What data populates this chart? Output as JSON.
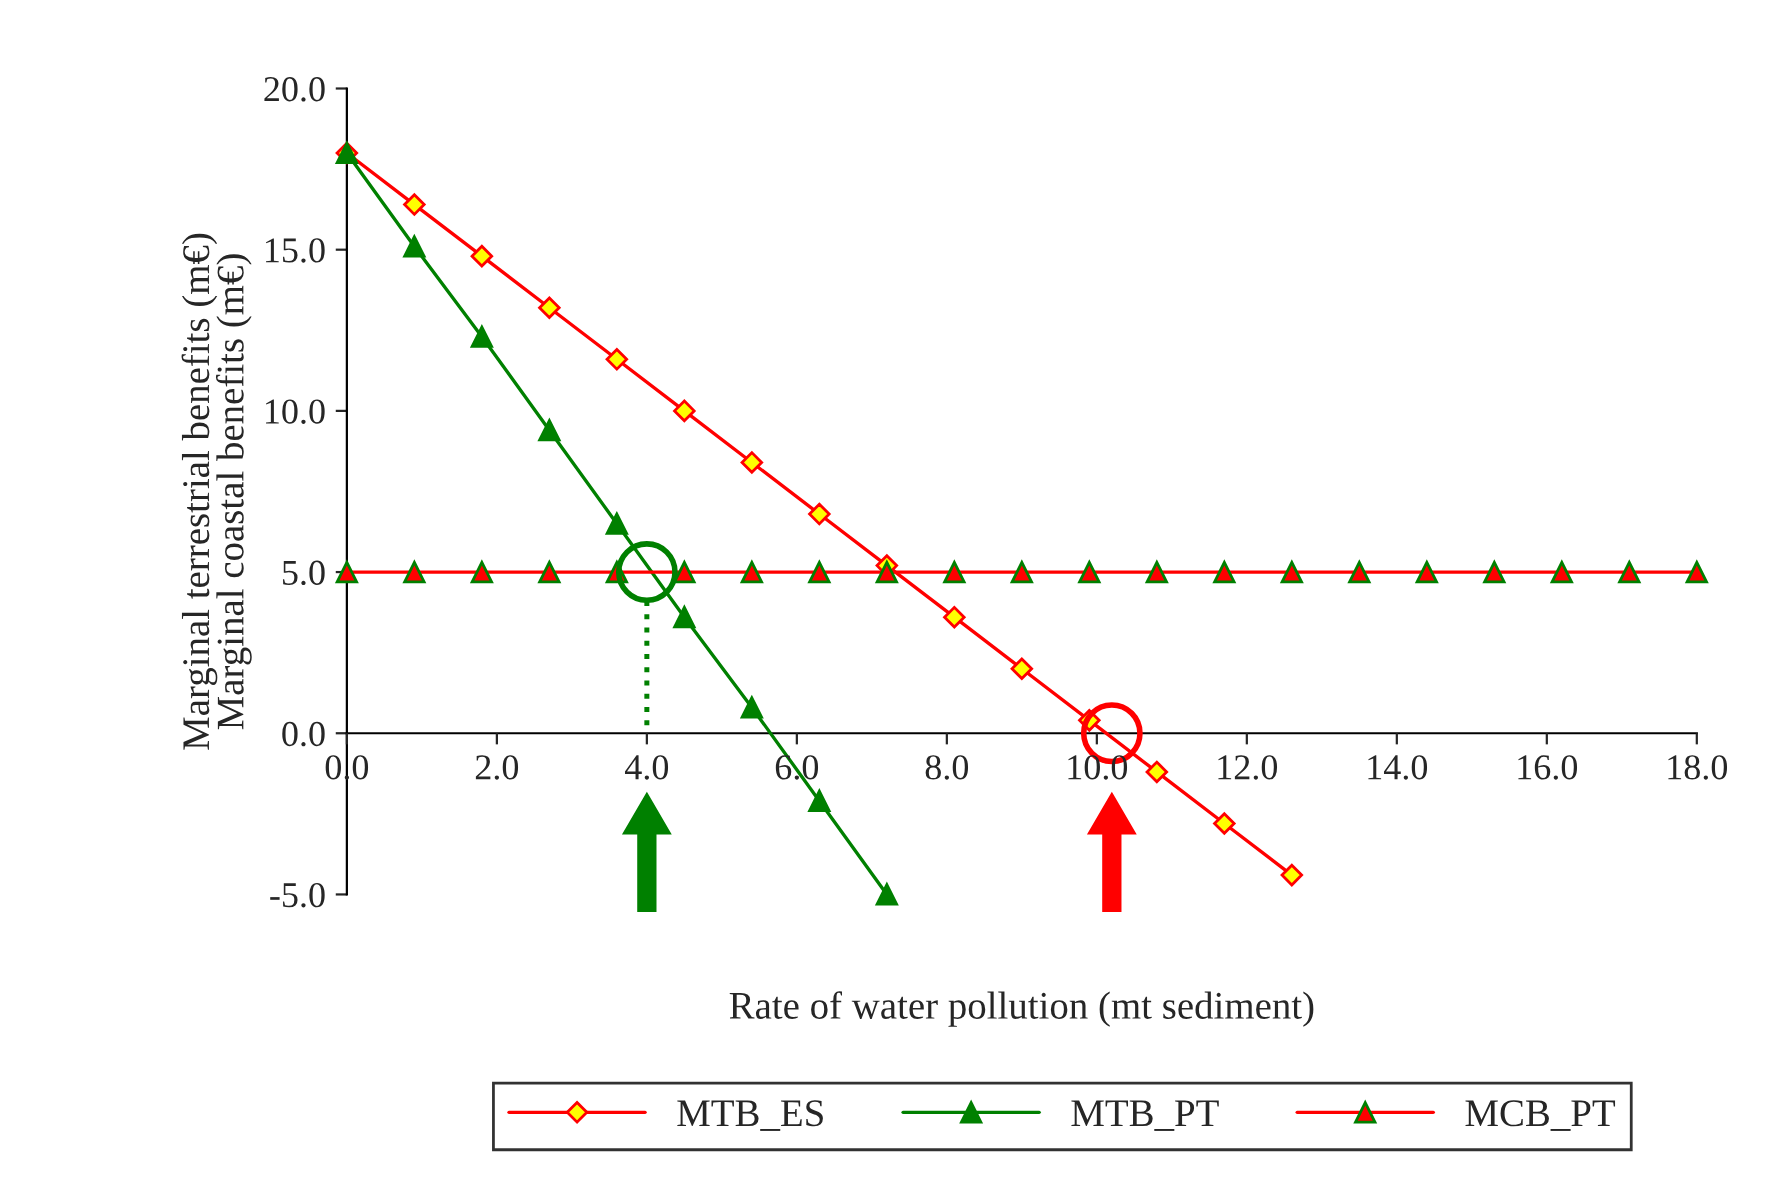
{
  "chart_data": {
    "type": "line",
    "xlabel": "Rate of water pollution (mt sediment)",
    "ylabel": "Marginal terrestrial benefits (m€)\nMarginal coastal benefits (m€)",
    "xlim": [
      0,
      18
    ],
    "ylim": [
      -5,
      20
    ],
    "xticks": [
      {
        "value": 0,
        "label": "0.0"
      },
      {
        "value": 2,
        "label": "2.0"
      },
      {
        "value": 4,
        "label": "4.0"
      },
      {
        "value": 6,
        "label": "6.0"
      },
      {
        "value": 8,
        "label": "8.0"
      },
      {
        "value": 10,
        "label": "10.0"
      },
      {
        "value": 12,
        "label": "12.0"
      },
      {
        "value": 14,
        "label": "14.0"
      },
      {
        "value": 16,
        "label": "16.0"
      },
      {
        "value": 18,
        "label": "18.0"
      }
    ],
    "yticks": [
      {
        "value": -5,
        "label": "-5.0"
      },
      {
        "value": 0,
        "label": "0.0"
      },
      {
        "value": 5,
        "label": "5.0"
      },
      {
        "value": 10,
        "label": "10.0"
      },
      {
        "value": 15,
        "label": "15.0"
      },
      {
        "value": 20,
        "label": "20.0"
      }
    ],
    "legend": "bottom",
    "grid": false,
    "line_style": "solid",
    "series": [
      {
        "name": "MTB_ES",
        "color": "#ff0000",
        "marker": "diamond",
        "x": [
          0,
          0.9,
          1.8,
          2.7,
          3.6,
          4.5,
          5.4,
          6.3,
          7.2,
          8.1,
          9.0,
          9.9,
          10.8,
          11.7,
          12.6
        ],
        "values": [
          18,
          16.4,
          14.8,
          13.2,
          11.6,
          10.0,
          8.4,
          6.8,
          5.2,
          3.6,
          2.0,
          0.4,
          -1.2,
          -2.8,
          -4.4
        ]
      },
      {
        "name": "MTB_PT",
        "color": "#008000",
        "marker": "triangle",
        "x": [
          0,
          0.9,
          1.8,
          2.7,
          3.6,
          4.5,
          5.4,
          6.3,
          7.2
        ],
        "values": [
          18,
          15.1,
          12.3,
          9.4,
          6.5,
          3.6,
          0.8,
          -2.1,
          -5.0
        ]
      },
      {
        "name": "MCB_PT",
        "color": "#ff0000",
        "marker": "triangle",
        "x": [
          0,
          0.9,
          1.8,
          2.7,
          3.6,
          4.5,
          5.4,
          6.3,
          7.2,
          8.1,
          9.0,
          9.9,
          10.8,
          11.7,
          12.6,
          13.5,
          14.4,
          15.3,
          16.2,
          17.1,
          18.0
        ],
        "values": [
          5,
          5,
          5,
          5,
          5,
          5,
          5,
          5,
          5,
          5,
          5,
          5,
          5,
          5,
          5,
          5,
          5,
          5,
          5,
          5,
          5
        ]
      }
    ]
  }
}
